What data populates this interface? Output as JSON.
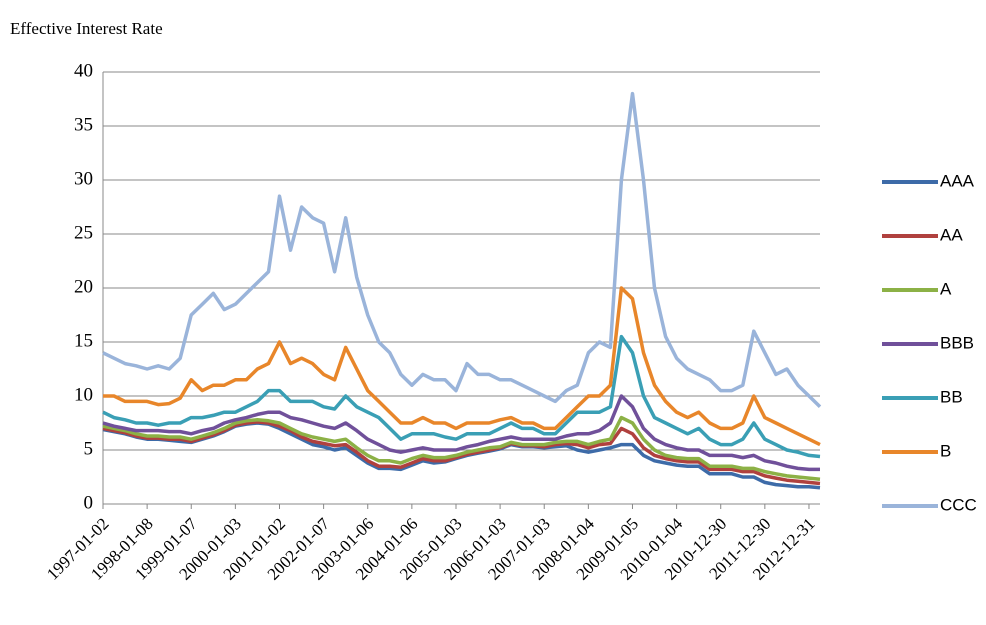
{
  "chart_data": {
    "type": "line",
    "title": "Effective Interest Rate",
    "categories": [
      "1997-01-02",
      null,
      null,
      null,
      "1998-01-08",
      null,
      null,
      null,
      "1999-01-07",
      null,
      null,
      null,
      "2000-01-03",
      null,
      null,
      null,
      "2001-01-02",
      null,
      null,
      null,
      "2002-01-07",
      null,
      null,
      null,
      "2003-01-06",
      null,
      null,
      null,
      "2004-01-06",
      null,
      null,
      null,
      "2005-01-03",
      null,
      null,
      null,
      "2006-01-03",
      null,
      null,
      null,
      "2007-01-03",
      null,
      null,
      null,
      "2008-01-04",
      null,
      null,
      null,
      "2009-01-05",
      null,
      null,
      null,
      "2010-01-04",
      null,
      null,
      null,
      "2010-12-30",
      null,
      null,
      null,
      "2011-12-30",
      null,
      null,
      null,
      "2012-12-31",
      null
    ],
    "ylim": [
      0,
      40
    ],
    "yticks": [
      0,
      5,
      10,
      15,
      20,
      25,
      30,
      35,
      40
    ],
    "grid": true,
    "legend": "right",
    "series": [
      {
        "name": "AAA",
        "color": "#3d6ba8",
        "values": [
          6.9,
          6.7,
          6.5,
          6.2,
          6.0,
          6.0,
          5.9,
          5.8,
          5.7,
          6.0,
          6.3,
          6.7,
          7.2,
          7.4,
          7.5,
          7.4,
          7.0,
          6.5,
          6.0,
          5.5,
          5.3,
          5.0,
          5.2,
          4.5,
          3.8,
          3.3,
          3.3,
          3.2,
          3.6,
          4.0,
          3.8,
          3.9,
          4.2,
          4.5,
          4.7,
          4.9,
          5.1,
          5.5,
          5.3,
          5.3,
          5.2,
          5.3,
          5.4,
          5.0,
          4.8,
          5.0,
          5.2,
          5.5,
          5.5,
          4.5,
          4.0,
          3.8,
          3.6,
          3.5,
          3.5,
          2.8,
          2.8,
          2.8,
          2.5,
          2.5,
          2.0,
          1.8,
          1.7,
          1.6,
          1.6,
          1.5
        ]
      },
      {
        "name": "AA",
        "color": "#b0413e",
        "values": [
          7.0,
          6.8,
          6.6,
          6.3,
          6.1,
          6.1,
          6.0,
          6.0,
          5.8,
          6.1,
          6.4,
          6.8,
          7.3,
          7.5,
          7.6,
          7.5,
          7.2,
          6.8,
          6.2,
          5.8,
          5.6,
          5.4,
          5.5,
          4.8,
          4.0,
          3.5,
          3.5,
          3.4,
          3.8,
          4.2,
          4.0,
          4.0,
          4.3,
          4.6,
          4.8,
          5.0,
          5.2,
          5.6,
          5.4,
          5.4,
          5.3,
          5.5,
          5.6,
          5.5,
          5.2,
          5.5,
          5.6,
          7.0,
          6.5,
          5.2,
          4.5,
          4.2,
          4.0,
          3.9,
          3.9,
          3.2,
          3.2,
          3.2,
          3.0,
          3.0,
          2.6,
          2.4,
          2.2,
          2.1,
          2.0,
          1.9
        ]
      },
      {
        "name": "A",
        "color": "#8cb146",
        "values": [
          7.2,
          7.0,
          6.8,
          6.5,
          6.3,
          6.3,
          6.2,
          6.2,
          6.0,
          6.3,
          6.6,
          7.0,
          7.5,
          7.7,
          7.8,
          7.7,
          7.5,
          7.0,
          6.5,
          6.2,
          6.0,
          5.8,
          6.0,
          5.2,
          4.5,
          4.0,
          4.0,
          3.8,
          4.2,
          4.5,
          4.3,
          4.3,
          4.5,
          4.8,
          5.0,
          5.2,
          5.3,
          5.7,
          5.5,
          5.5,
          5.5,
          5.7,
          5.8,
          5.8,
          5.5,
          5.8,
          6.0,
          8.0,
          7.5,
          6.0,
          5.0,
          4.5,
          4.3,
          4.2,
          4.2,
          3.5,
          3.5,
          3.5,
          3.3,
          3.3,
          3.0,
          2.8,
          2.6,
          2.5,
          2.4,
          2.3
        ]
      },
      {
        "name": "BBB",
        "color": "#70509a",
        "values": [
          7.5,
          7.2,
          7.0,
          6.8,
          6.8,
          6.8,
          6.7,
          6.7,
          6.5,
          6.8,
          7.0,
          7.5,
          7.8,
          8.0,
          8.3,
          8.5,
          8.5,
          8.0,
          7.8,
          7.5,
          7.2,
          7.0,
          7.5,
          6.8,
          6.0,
          5.5,
          5.0,
          4.8,
          5.0,
          5.2,
          5.0,
          5.0,
          5.0,
          5.3,
          5.5,
          5.8,
          6.0,
          6.2,
          6.0,
          6.0,
          6.0,
          6.0,
          6.3,
          6.5,
          6.5,
          6.8,
          7.5,
          10.0,
          9.0,
          7.0,
          6.0,
          5.5,
          5.2,
          5.0,
          5.0,
          4.5,
          4.5,
          4.5,
          4.3,
          4.5,
          4.0,
          3.8,
          3.5,
          3.3,
          3.2,
          3.2
        ]
      },
      {
        "name": "BB",
        "color": "#3a9fb5",
        "values": [
          8.5,
          8.0,
          7.8,
          7.5,
          7.5,
          7.3,
          7.5,
          7.5,
          8.0,
          8.0,
          8.2,
          8.5,
          8.5,
          9.0,
          9.5,
          10.5,
          10.5,
          9.5,
          9.5,
          9.5,
          9.0,
          8.8,
          10.0,
          9.0,
          8.5,
          8.0,
          7.0,
          6.0,
          6.5,
          6.5,
          6.5,
          6.2,
          6.0,
          6.5,
          6.5,
          6.5,
          7.0,
          7.5,
          7.0,
          7.0,
          6.5,
          6.5,
          7.5,
          8.5,
          8.5,
          8.5,
          9.0,
          15.5,
          14.0,
          10.0,
          8.0,
          7.5,
          7.0,
          6.5,
          7.0,
          6.0,
          5.5,
          5.5,
          6.0,
          7.5,
          6.0,
          5.5,
          5.0,
          4.8,
          4.5,
          4.4
        ]
      },
      {
        "name": "B",
        "color": "#e8862a",
        "values": [
          10.0,
          10.0,
          9.5,
          9.5,
          9.5,
          9.2,
          9.3,
          9.8,
          11.5,
          10.5,
          11.0,
          11.0,
          11.5,
          11.5,
          12.5,
          13.0,
          15.0,
          13.0,
          13.5,
          13.0,
          12.0,
          11.5,
          14.5,
          12.5,
          10.5,
          9.5,
          8.5,
          7.5,
          7.5,
          8.0,
          7.5,
          7.5,
          7.0,
          7.5,
          7.5,
          7.5,
          7.8,
          8.0,
          7.5,
          7.5,
          7.0,
          7.0,
          8.0,
          9.0,
          10.0,
          10.0,
          11.0,
          20.0,
          19.0,
          14.0,
          11.0,
          9.5,
          8.5,
          8.0,
          8.5,
          7.5,
          7.0,
          7.0,
          7.5,
          10.0,
          8.0,
          7.5,
          7.0,
          6.5,
          6.0,
          5.5
        ]
      },
      {
        "name": "CCC",
        "color": "#9ab4da",
        "values": [
          14.0,
          13.5,
          13.0,
          12.8,
          12.5,
          12.8,
          12.5,
          13.5,
          17.5,
          18.5,
          19.5,
          18.0,
          18.5,
          19.5,
          20.5,
          21.5,
          28.5,
          23.5,
          27.5,
          26.5,
          26.0,
          21.5,
          26.5,
          21.0,
          17.5,
          15.0,
          14.0,
          12.0,
          11.0,
          12.0,
          11.5,
          11.5,
          10.5,
          13.0,
          12.0,
          12.0,
          11.5,
          11.5,
          11.0,
          10.5,
          10.0,
          9.5,
          10.5,
          11.0,
          14.0,
          15.0,
          14.5,
          30.0,
          38.0,
          30.0,
          20.0,
          15.5,
          13.5,
          12.5,
          12.0,
          11.5,
          10.5,
          10.5,
          11.0,
          16.0,
          14.0,
          12.0,
          12.5,
          11.0,
          10.0,
          9.0
        ]
      }
    ]
  }
}
